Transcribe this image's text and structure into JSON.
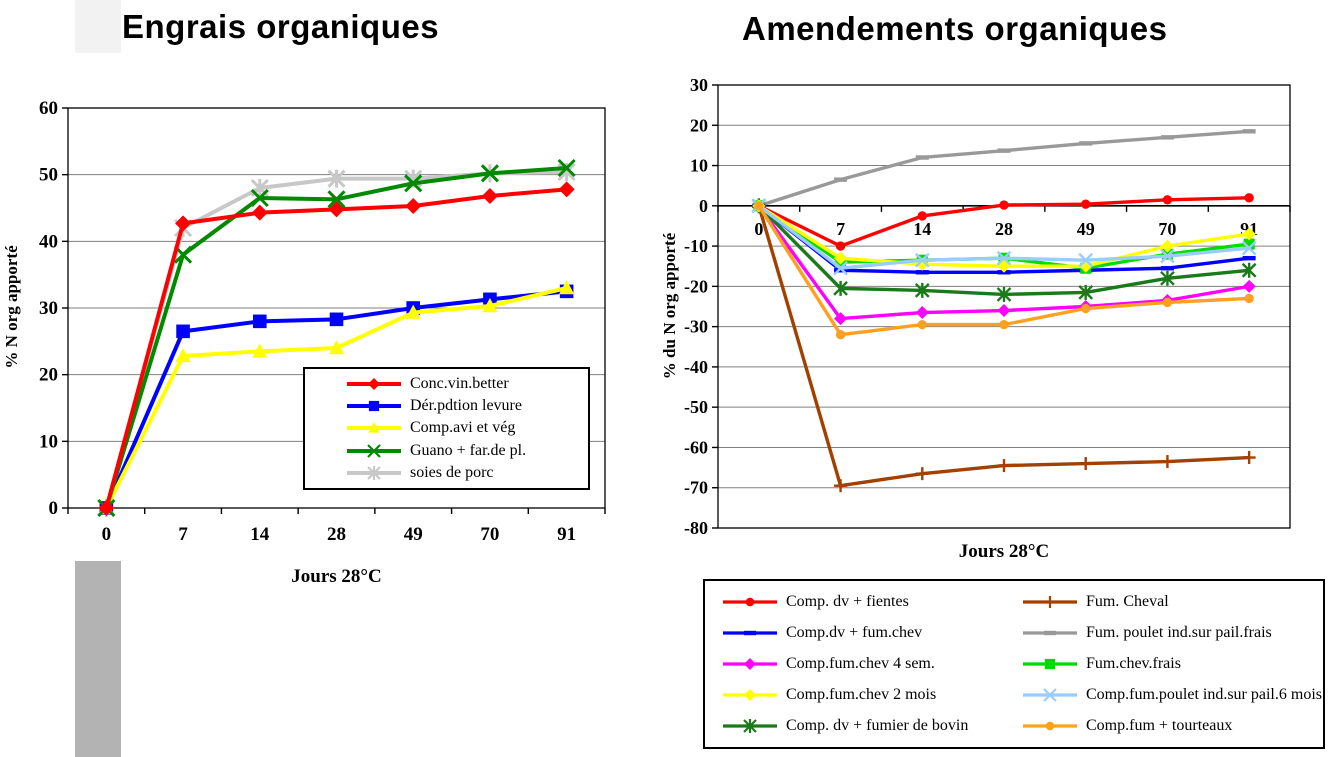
{
  "page": {
    "background": "#FFFFFF"
  },
  "decor": {
    "top_box_color": "#F2F2F2",
    "side_bar_color": "#B3B3B3"
  },
  "chart_data": [
    {
      "id": "engrais",
      "type": "line",
      "title": "Engrais organiques",
      "xlabel": "Jours  28°C",
      "ylabel": "% N org apporté",
      "categories": [
        "0",
        "7",
        "14",
        "28",
        "49",
        "70",
        "91"
      ],
      "ylim": [
        0,
        60
      ],
      "yticks": [
        0,
        10,
        20,
        30,
        40,
        50,
        60
      ],
      "grid": true,
      "grid_color": "#808080",
      "axis_color": "#000000",
      "legend_position": "inside-lower-right",
      "zorder": [
        4,
        1,
        2,
        3,
        0
      ],
      "series": [
        {
          "name": "Conc.vin.better",
          "color": "#FF0000",
          "marker": "diamond",
          "values": [
            0,
            42.7,
            44.3,
            44.8,
            45.3,
            46.8,
            47.8
          ]
        },
        {
          "name": "Dér.pdtion levure",
          "color": "#0000FF",
          "marker": "square",
          "values": [
            0,
            26.5,
            28,
            28.3,
            30,
            31.3,
            32.5
          ]
        },
        {
          "name": "Comp.avi et vég",
          "color": "#FFFF00",
          "marker": "triangle",
          "values": [
            0,
            22.8,
            23.5,
            24,
            29.3,
            30.3,
            33
          ]
        },
        {
          "name": "Guano + far.de pl.",
          "color": "#008A00",
          "marker": "x",
          "values": [
            0,
            38,
            46.5,
            46.3,
            48.7,
            50.2,
            51
          ]
        },
        {
          "name": "soies de porc",
          "color": "#C8C8C8",
          "marker": "asterisk",
          "values": [
            0,
            42,
            48,
            49.4,
            49.4,
            50.2,
            50.4
          ]
        }
      ]
    },
    {
      "id": "amendements",
      "type": "line",
      "title": "Amendements organiques",
      "xlabel": "Jours  28°C",
      "ylabel": "% du N org apporté",
      "categories": [
        "0",
        "7",
        "14",
        "28",
        "49",
        "70",
        "91"
      ],
      "ylim": [
        -80,
        30
      ],
      "yticks": [
        -80,
        -70,
        -60,
        -50,
        -40,
        -30,
        -20,
        -10,
        0,
        10,
        20,
        30
      ],
      "grid": true,
      "grid_color": "#808080",
      "axis_color": "#000000",
      "legend_position": "below-two-columns",
      "zorder": [
        6,
        5,
        0,
        1,
        2,
        4,
        7,
        3,
        8,
        9
      ],
      "series": [
        {
          "name": "Comp. dv + fientes",
          "color": "#FF0000",
          "marker": "circle",
          "values": [
            0,
            -10,
            -2.5,
            0.2,
            0.4,
            1.5,
            2
          ]
        },
        {
          "name": "Comp.dv + fum.chev",
          "color": "#0000FF",
          "marker": "dash",
          "values": [
            0,
            -16,
            -16.5,
            -16.5,
            -16,
            -15.5,
            -13
          ]
        },
        {
          "name": "Comp.fum.chev 4 sem.",
          "color": "#FF00FF",
          "marker": "diamond",
          "values": [
            0,
            -28,
            -26.5,
            -26,
            -25,
            -23.5,
            -20
          ]
        },
        {
          "name": "Comp.fum.chev 2 mois",
          "color": "#FFFF00",
          "marker": "diamond",
          "values": [
            0,
            -13,
            -14.5,
            -15,
            -15,
            -10,
            -7
          ]
        },
        {
          "name": "Comp. dv + fumier de bovin",
          "color": "#1A7A1A",
          "marker": "asterisk",
          "values": [
            0,
            -20.5,
            -21,
            -22,
            -21.5,
            -18,
            -16
          ]
        },
        {
          "name": "Fum. Cheval",
          "color": "#A34000",
          "marker": "plus",
          "values": [
            0,
            -69.5,
            -66.5,
            -64.5,
            -64,
            -63.5,
            -62.5
          ]
        },
        {
          "name": "Fum. poulet ind.sur pail.frais",
          "color": "#999999",
          "marker": "dash",
          "values": [
            0,
            6.5,
            12,
            13.7,
            15.5,
            17,
            18.5
          ]
        },
        {
          "name": "Fum.chev.frais",
          "color": "#00DC00",
          "marker": "square",
          "values": [
            0,
            -14,
            -13.5,
            -13,
            -15.5,
            -12,
            -9.5
          ]
        },
        {
          "name": "Comp.fum.poulet ind.sur pail.6 mois",
          "color": "#99CCFF",
          "marker": "x",
          "values": [
            0,
            -15.5,
            -13.5,
            -13,
            -13.5,
            -12.5,
            -10.5
          ]
        },
        {
          "name": "Comp.fum + tourteaux",
          "color": "#FFA020",
          "marker": "circle",
          "values": [
            0,
            -32,
            -29.5,
            -29.5,
            -25.5,
            -24,
            -23
          ]
        }
      ]
    }
  ]
}
